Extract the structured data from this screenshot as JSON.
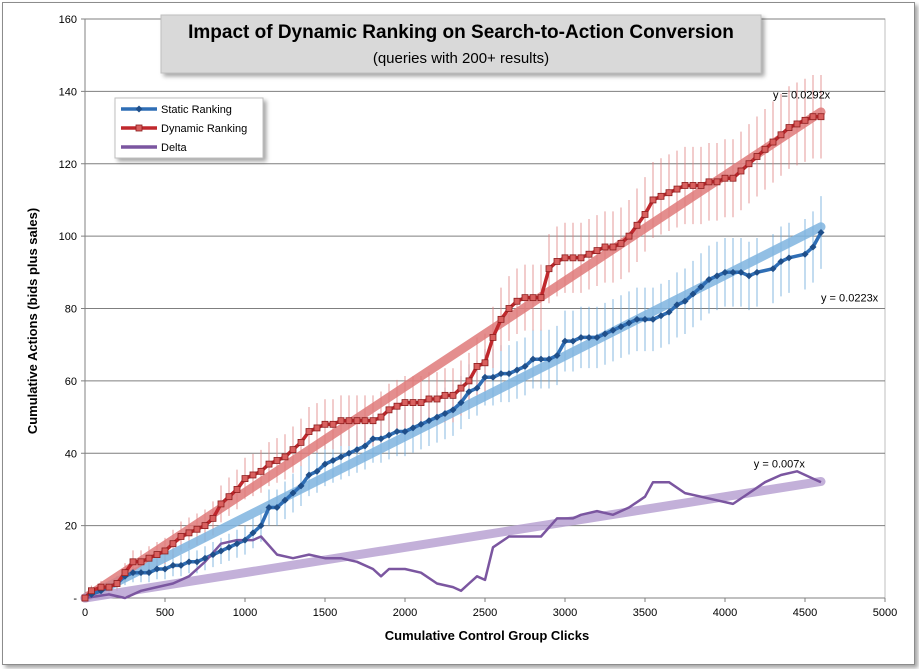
{
  "chart_data": {
    "type": "line",
    "title": "Impact of Dynamic Ranking on Search-to-Action Conversion",
    "subtitle": "(queries  with 200+ results)",
    "xlabel": "Cumulative Control Group Clicks",
    "ylabel": "Cumulative Actions (bids plus sales)",
    "xlim": [
      0,
      5000
    ],
    "ylim": [
      0,
      160
    ],
    "x_ticks": [
      "0",
      "500",
      "1000",
      "1500",
      "2000",
      "2500",
      "3000",
      "3500",
      "4000",
      "4500",
      "5000"
    ],
    "y_ticks": [
      "-",
      "20",
      "40",
      "60",
      "80",
      "100",
      "120",
      "140",
      "160"
    ],
    "grid": "horizontal",
    "legend_position": "top-left",
    "legend": [
      "Static Ranking",
      "Dynamic Ranking",
      "Delta"
    ],
    "series": [
      {
        "name": "Static Ranking",
        "color": "#2f6eb5",
        "marker": "diamond",
        "points": [
          [
            0,
            0
          ],
          [
            40,
            1
          ],
          [
            100,
            2
          ],
          [
            150,
            3
          ],
          [
            200,
            4
          ],
          [
            250,
            6
          ],
          [
            300,
            7
          ],
          [
            350,
            7
          ],
          [
            400,
            7
          ],
          [
            450,
            8
          ],
          [
            500,
            8
          ],
          [
            550,
            9
          ],
          [
            600,
            9
          ],
          [
            650,
            10
          ],
          [
            700,
            10
          ],
          [
            750,
            11
          ],
          [
            800,
            12
          ],
          [
            850,
            13
          ],
          [
            900,
            14
          ],
          [
            950,
            15
          ],
          [
            1000,
            16
          ],
          [
            1050,
            18
          ],
          [
            1100,
            20
          ],
          [
            1150,
            25
          ],
          [
            1200,
            25
          ],
          [
            1250,
            27
          ],
          [
            1300,
            29
          ],
          [
            1350,
            31
          ],
          [
            1400,
            34
          ],
          [
            1450,
            35
          ],
          [
            1500,
            37
          ],
          [
            1550,
            38
          ],
          [
            1600,
            39
          ],
          [
            1650,
            40
          ],
          [
            1700,
            41
          ],
          [
            1750,
            42
          ],
          [
            1800,
            44
          ],
          [
            1850,
            44
          ],
          [
            1900,
            45
          ],
          [
            1950,
            46
          ],
          [
            2000,
            46
          ],
          [
            2050,
            47
          ],
          [
            2100,
            48
          ],
          [
            2150,
            49
          ],
          [
            2200,
            50
          ],
          [
            2250,
            51
          ],
          [
            2300,
            52
          ],
          [
            2350,
            54
          ],
          [
            2400,
            57
          ],
          [
            2450,
            58
          ],
          [
            2500,
            61
          ],
          [
            2550,
            61
          ],
          [
            2600,
            62
          ],
          [
            2650,
            62
          ],
          [
            2700,
            63
          ],
          [
            2750,
            64
          ],
          [
            2800,
            66
          ],
          [
            2850,
            66
          ],
          [
            2900,
            66
          ],
          [
            2950,
            67
          ],
          [
            3000,
            71
          ],
          [
            3050,
            71
          ],
          [
            3100,
            72
          ],
          [
            3150,
            72
          ],
          [
            3200,
            72
          ],
          [
            3250,
            73
          ],
          [
            3300,
            74
          ],
          [
            3350,
            75
          ],
          [
            3400,
            76
          ],
          [
            3450,
            77
          ],
          [
            3500,
            77
          ],
          [
            3550,
            77
          ],
          [
            3600,
            78
          ],
          [
            3650,
            79
          ],
          [
            3700,
            81
          ],
          [
            3750,
            82
          ],
          [
            3800,
            84
          ],
          [
            3850,
            86
          ],
          [
            3900,
            88
          ],
          [
            3950,
            89
          ],
          [
            4000,
            90
          ],
          [
            4050,
            90
          ],
          [
            4100,
            90
          ],
          [
            4150,
            89
          ],
          [
            4200,
            90
          ],
          [
            4300,
            91
          ],
          [
            4350,
            93
          ],
          [
            4400,
            94
          ],
          [
            4500,
            95
          ],
          [
            4550,
            97
          ],
          [
            4600,
            101
          ]
        ]
      },
      {
        "name": "Dynamic Ranking",
        "color": "#c0282d",
        "marker": "square",
        "points": [
          [
            0,
            0
          ],
          [
            40,
            2
          ],
          [
            100,
            3
          ],
          [
            150,
            3
          ],
          [
            200,
            4
          ],
          [
            250,
            7
          ],
          [
            300,
            10
          ],
          [
            350,
            10
          ],
          [
            400,
            11
          ],
          [
            450,
            12
          ],
          [
            500,
            13
          ],
          [
            550,
            15
          ],
          [
            600,
            17
          ],
          [
            650,
            18
          ],
          [
            700,
            19
          ],
          [
            750,
            20
          ],
          [
            800,
            22
          ],
          [
            850,
            26
          ],
          [
            900,
            28
          ],
          [
            950,
            30
          ],
          [
            1000,
            33
          ],
          [
            1050,
            34
          ],
          [
            1100,
            35
          ],
          [
            1150,
            37
          ],
          [
            1200,
            38
          ],
          [
            1250,
            39
          ],
          [
            1300,
            41
          ],
          [
            1350,
            43
          ],
          [
            1400,
            46
          ],
          [
            1450,
            47
          ],
          [
            1500,
            48
          ],
          [
            1550,
            48
          ],
          [
            1600,
            49
          ],
          [
            1650,
            49
          ],
          [
            1700,
            49
          ],
          [
            1750,
            49
          ],
          [
            1800,
            49
          ],
          [
            1850,
            50
          ],
          [
            1900,
            52
          ],
          [
            1950,
            53
          ],
          [
            2000,
            54
          ],
          [
            2050,
            54
          ],
          [
            2100,
            54
          ],
          [
            2150,
            55
          ],
          [
            2200,
            55
          ],
          [
            2250,
            56
          ],
          [
            2300,
            56
          ],
          [
            2350,
            58
          ],
          [
            2400,
            60
          ],
          [
            2450,
            64
          ],
          [
            2500,
            65
          ],
          [
            2550,
            72
          ],
          [
            2600,
            77
          ],
          [
            2650,
            80
          ],
          [
            2700,
            82
          ],
          [
            2750,
            83
          ],
          [
            2800,
            83
          ],
          [
            2850,
            83
          ],
          [
            2900,
            91
          ],
          [
            2950,
            93
          ],
          [
            3000,
            94
          ],
          [
            3050,
            94
          ],
          [
            3100,
            94
          ],
          [
            3150,
            95
          ],
          [
            3200,
            96
          ],
          [
            3250,
            97
          ],
          [
            3300,
            97
          ],
          [
            3350,
            98
          ],
          [
            3400,
            100
          ],
          [
            3450,
            103
          ],
          [
            3500,
            106
          ],
          [
            3550,
            110
          ],
          [
            3600,
            111
          ],
          [
            3650,
            112
          ],
          [
            3700,
            113
          ],
          [
            3750,
            114
          ],
          [
            3800,
            114
          ],
          [
            3850,
            114
          ],
          [
            3900,
            115
          ],
          [
            3950,
            115
          ],
          [
            4000,
            116
          ],
          [
            4050,
            116
          ],
          [
            4100,
            118
          ],
          [
            4150,
            120
          ],
          [
            4200,
            122
          ],
          [
            4250,
            124
          ],
          [
            4300,
            126
          ],
          [
            4350,
            128
          ],
          [
            4400,
            130
          ],
          [
            4450,
            131
          ],
          [
            4500,
            132
          ],
          [
            4550,
            133
          ],
          [
            4600,
            133
          ]
        ]
      },
      {
        "name": "Delta",
        "color": "#7b56a0",
        "marker": "none",
        "points": [
          [
            0,
            0
          ],
          [
            150,
            1
          ],
          [
            250,
            0
          ],
          [
            350,
            2
          ],
          [
            450,
            3
          ],
          [
            550,
            4
          ],
          [
            650,
            6
          ],
          [
            750,
            10
          ],
          [
            850,
            15
          ],
          [
            950,
            16
          ],
          [
            1050,
            16
          ],
          [
            1100,
            17
          ],
          [
            1200,
            12
          ],
          [
            1300,
            11
          ],
          [
            1400,
            12
          ],
          [
            1500,
            11
          ],
          [
            1600,
            11
          ],
          [
            1700,
            10
          ],
          [
            1800,
            8
          ],
          [
            1850,
            6
          ],
          [
            1900,
            8
          ],
          [
            2000,
            8
          ],
          [
            2100,
            7
          ],
          [
            2200,
            4
          ],
          [
            2300,
            3
          ],
          [
            2350,
            2
          ],
          [
            2400,
            4
          ],
          [
            2450,
            6
          ],
          [
            2500,
            5
          ],
          [
            2550,
            14
          ],
          [
            2650,
            17
          ],
          [
            2750,
            17
          ],
          [
            2850,
            17
          ],
          [
            2950,
            22
          ],
          [
            3050,
            22
          ],
          [
            3100,
            23
          ],
          [
            3200,
            24
          ],
          [
            3300,
            23
          ],
          [
            3400,
            25
          ],
          [
            3500,
            28
          ],
          [
            3550,
            32
          ],
          [
            3650,
            32
          ],
          [
            3750,
            29
          ],
          [
            3850,
            28
          ],
          [
            3950,
            27
          ],
          [
            4050,
            26
          ],
          [
            4150,
            29
          ],
          [
            4250,
            32
          ],
          [
            4350,
            34
          ],
          [
            4450,
            35
          ],
          [
            4550,
            33
          ],
          [
            4600,
            32
          ]
        ]
      }
    ],
    "trendlines": [
      {
        "series": "Static Ranking",
        "slope": 0.0223,
        "label": "y = 0.0223x",
        "color": "#7fb5e0"
      },
      {
        "series": "Dynamic Ranking",
        "slope": 0.0292,
        "label": "y = 0.0292x",
        "color": "#e07b7b"
      },
      {
        "series": "Delta",
        "slope": 0.007,
        "label": "y = 0.007x",
        "color": "#b9a3d3"
      }
    ]
  }
}
